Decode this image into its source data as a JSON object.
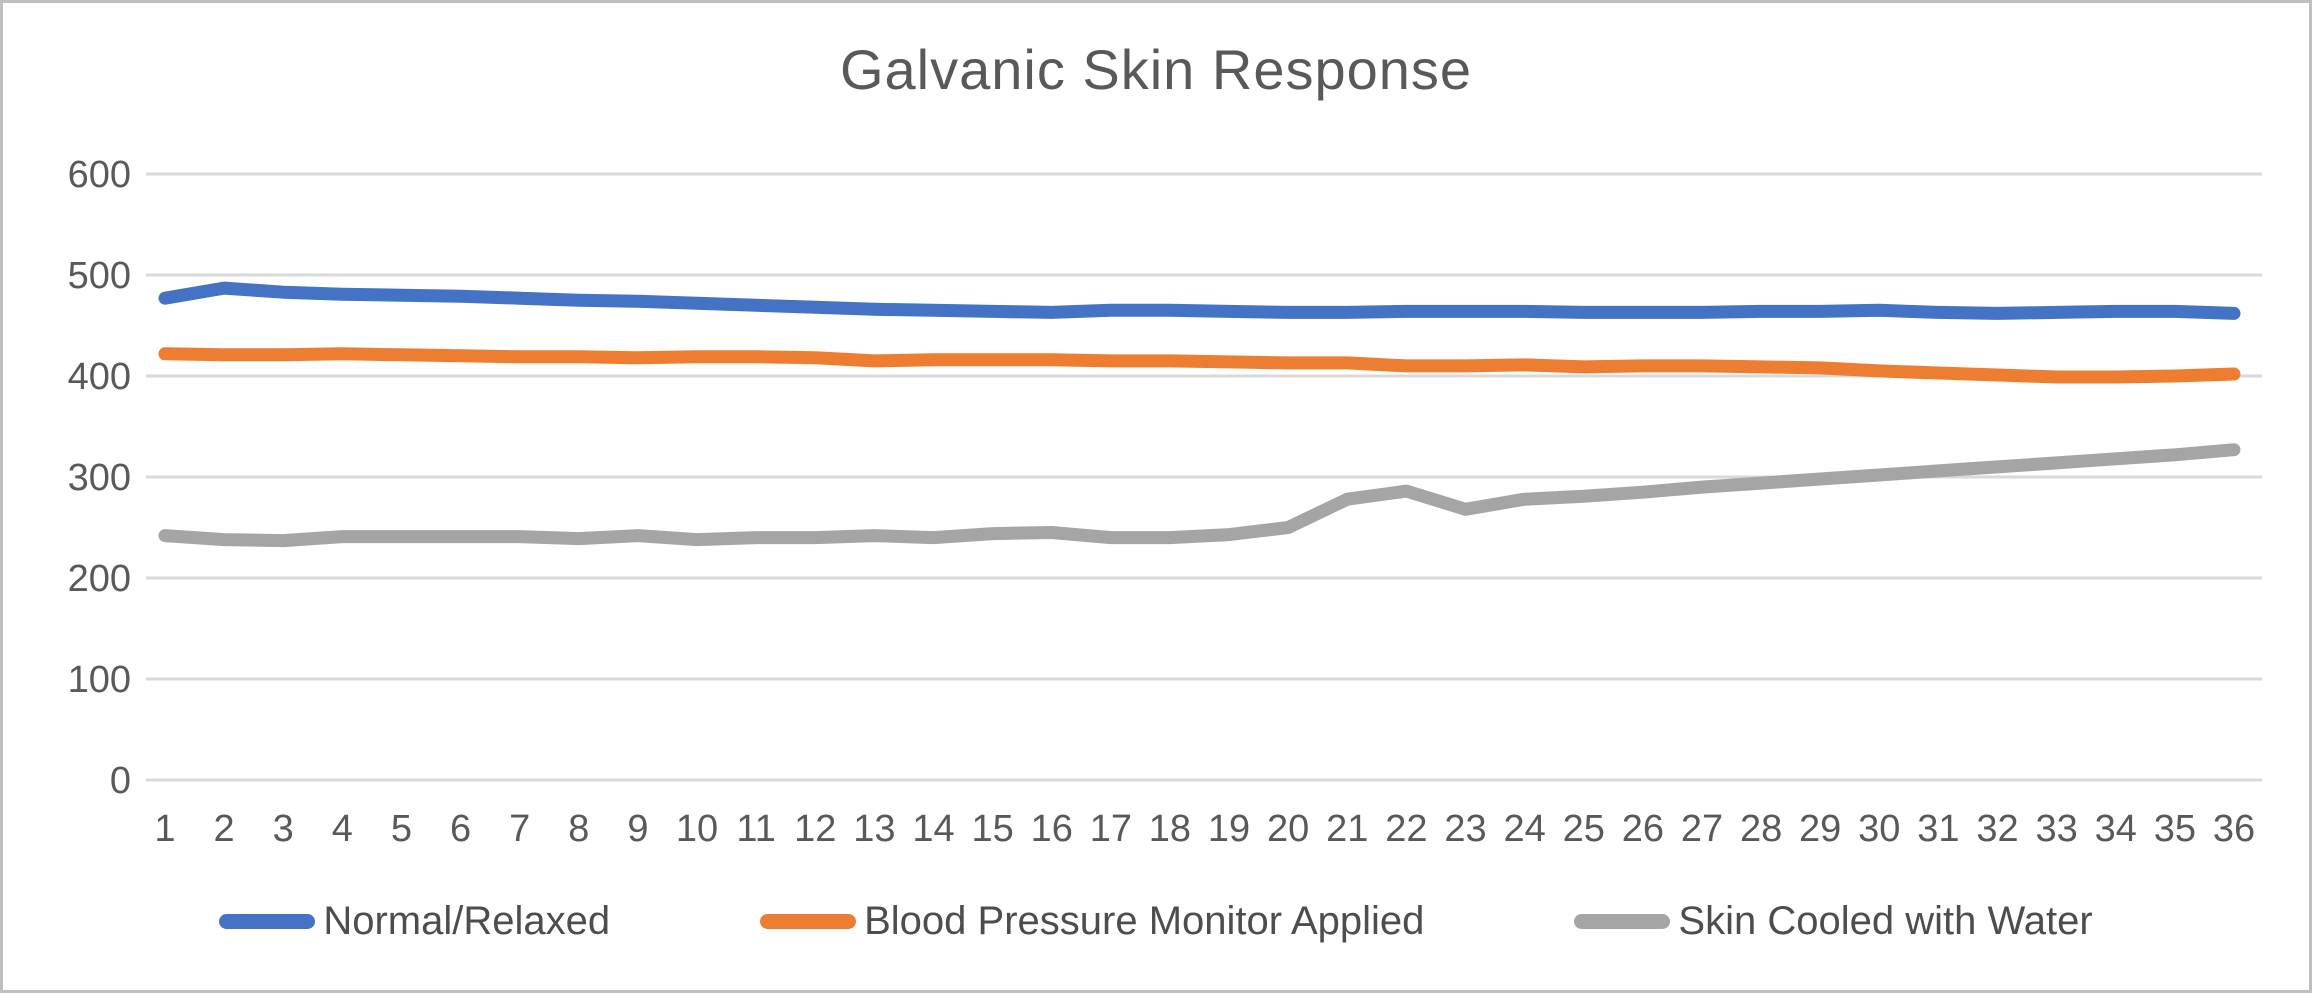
{
  "window": {
    "background": "#FFFFFF",
    "border_color": "#BFBFBF"
  },
  "chart_data": {
    "type": "line",
    "title": "Galvanic Skin Response",
    "xlabel": "",
    "ylabel": "",
    "x": [
      1,
      2,
      3,
      4,
      5,
      6,
      7,
      8,
      9,
      10,
      11,
      12,
      13,
      14,
      15,
      16,
      17,
      18,
      19,
      20,
      21,
      22,
      23,
      24,
      25,
      26,
      27,
      28,
      29,
      30,
      31,
      32,
      33,
      34,
      35,
      36
    ],
    "series": [
      {
        "name": "Normal/Relaxed",
        "color": "#4472C4",
        "values": [
          477,
          487,
          483,
          481,
          480,
          479,
          477,
          475,
          474,
          472,
          470,
          468,
          466,
          465,
          464,
          463,
          465,
          465,
          464,
          463,
          463,
          464,
          464,
          464,
          463,
          463,
          463,
          464,
          464,
          465,
          463,
          462,
          463,
          464,
          464,
          462
        ]
      },
      {
        "name": "Blood Pressure Monitor Applied",
        "color": "#ED7D31",
        "values": [
          422,
          421,
          421,
          422,
          421,
          420,
          419,
          419,
          418,
          419,
          419,
          418,
          415,
          416,
          416,
          416,
          415,
          415,
          414,
          413,
          413,
          410,
          410,
          411,
          409,
          410,
          410,
          409,
          408,
          405,
          403,
          401,
          399,
          399,
          400,
          402
        ]
      },
      {
        "name": "Skin Cooled with Water",
        "color": "#A5A5A5",
        "values": [
          242,
          238,
          237,
          241,
          241,
          241,
          241,
          239,
          242,
          238,
          240,
          240,
          242,
          240,
          244,
          245,
          240,
          240,
          243,
          250,
          278,
          286,
          268,
          278,
          281,
          285,
          290,
          294,
          298,
          302,
          306,
          310,
          314,
          318,
          322,
          327
        ]
      }
    ],
    "ylim": [
      0,
      600
    ],
    "yticks": [
      0,
      100,
      200,
      300,
      400,
      500,
      600
    ],
    "grid": true,
    "gridline_color": "#D9D9D9",
    "axis_text_color": "#595959",
    "legend_position": "bottom",
    "line_width": 13
  }
}
